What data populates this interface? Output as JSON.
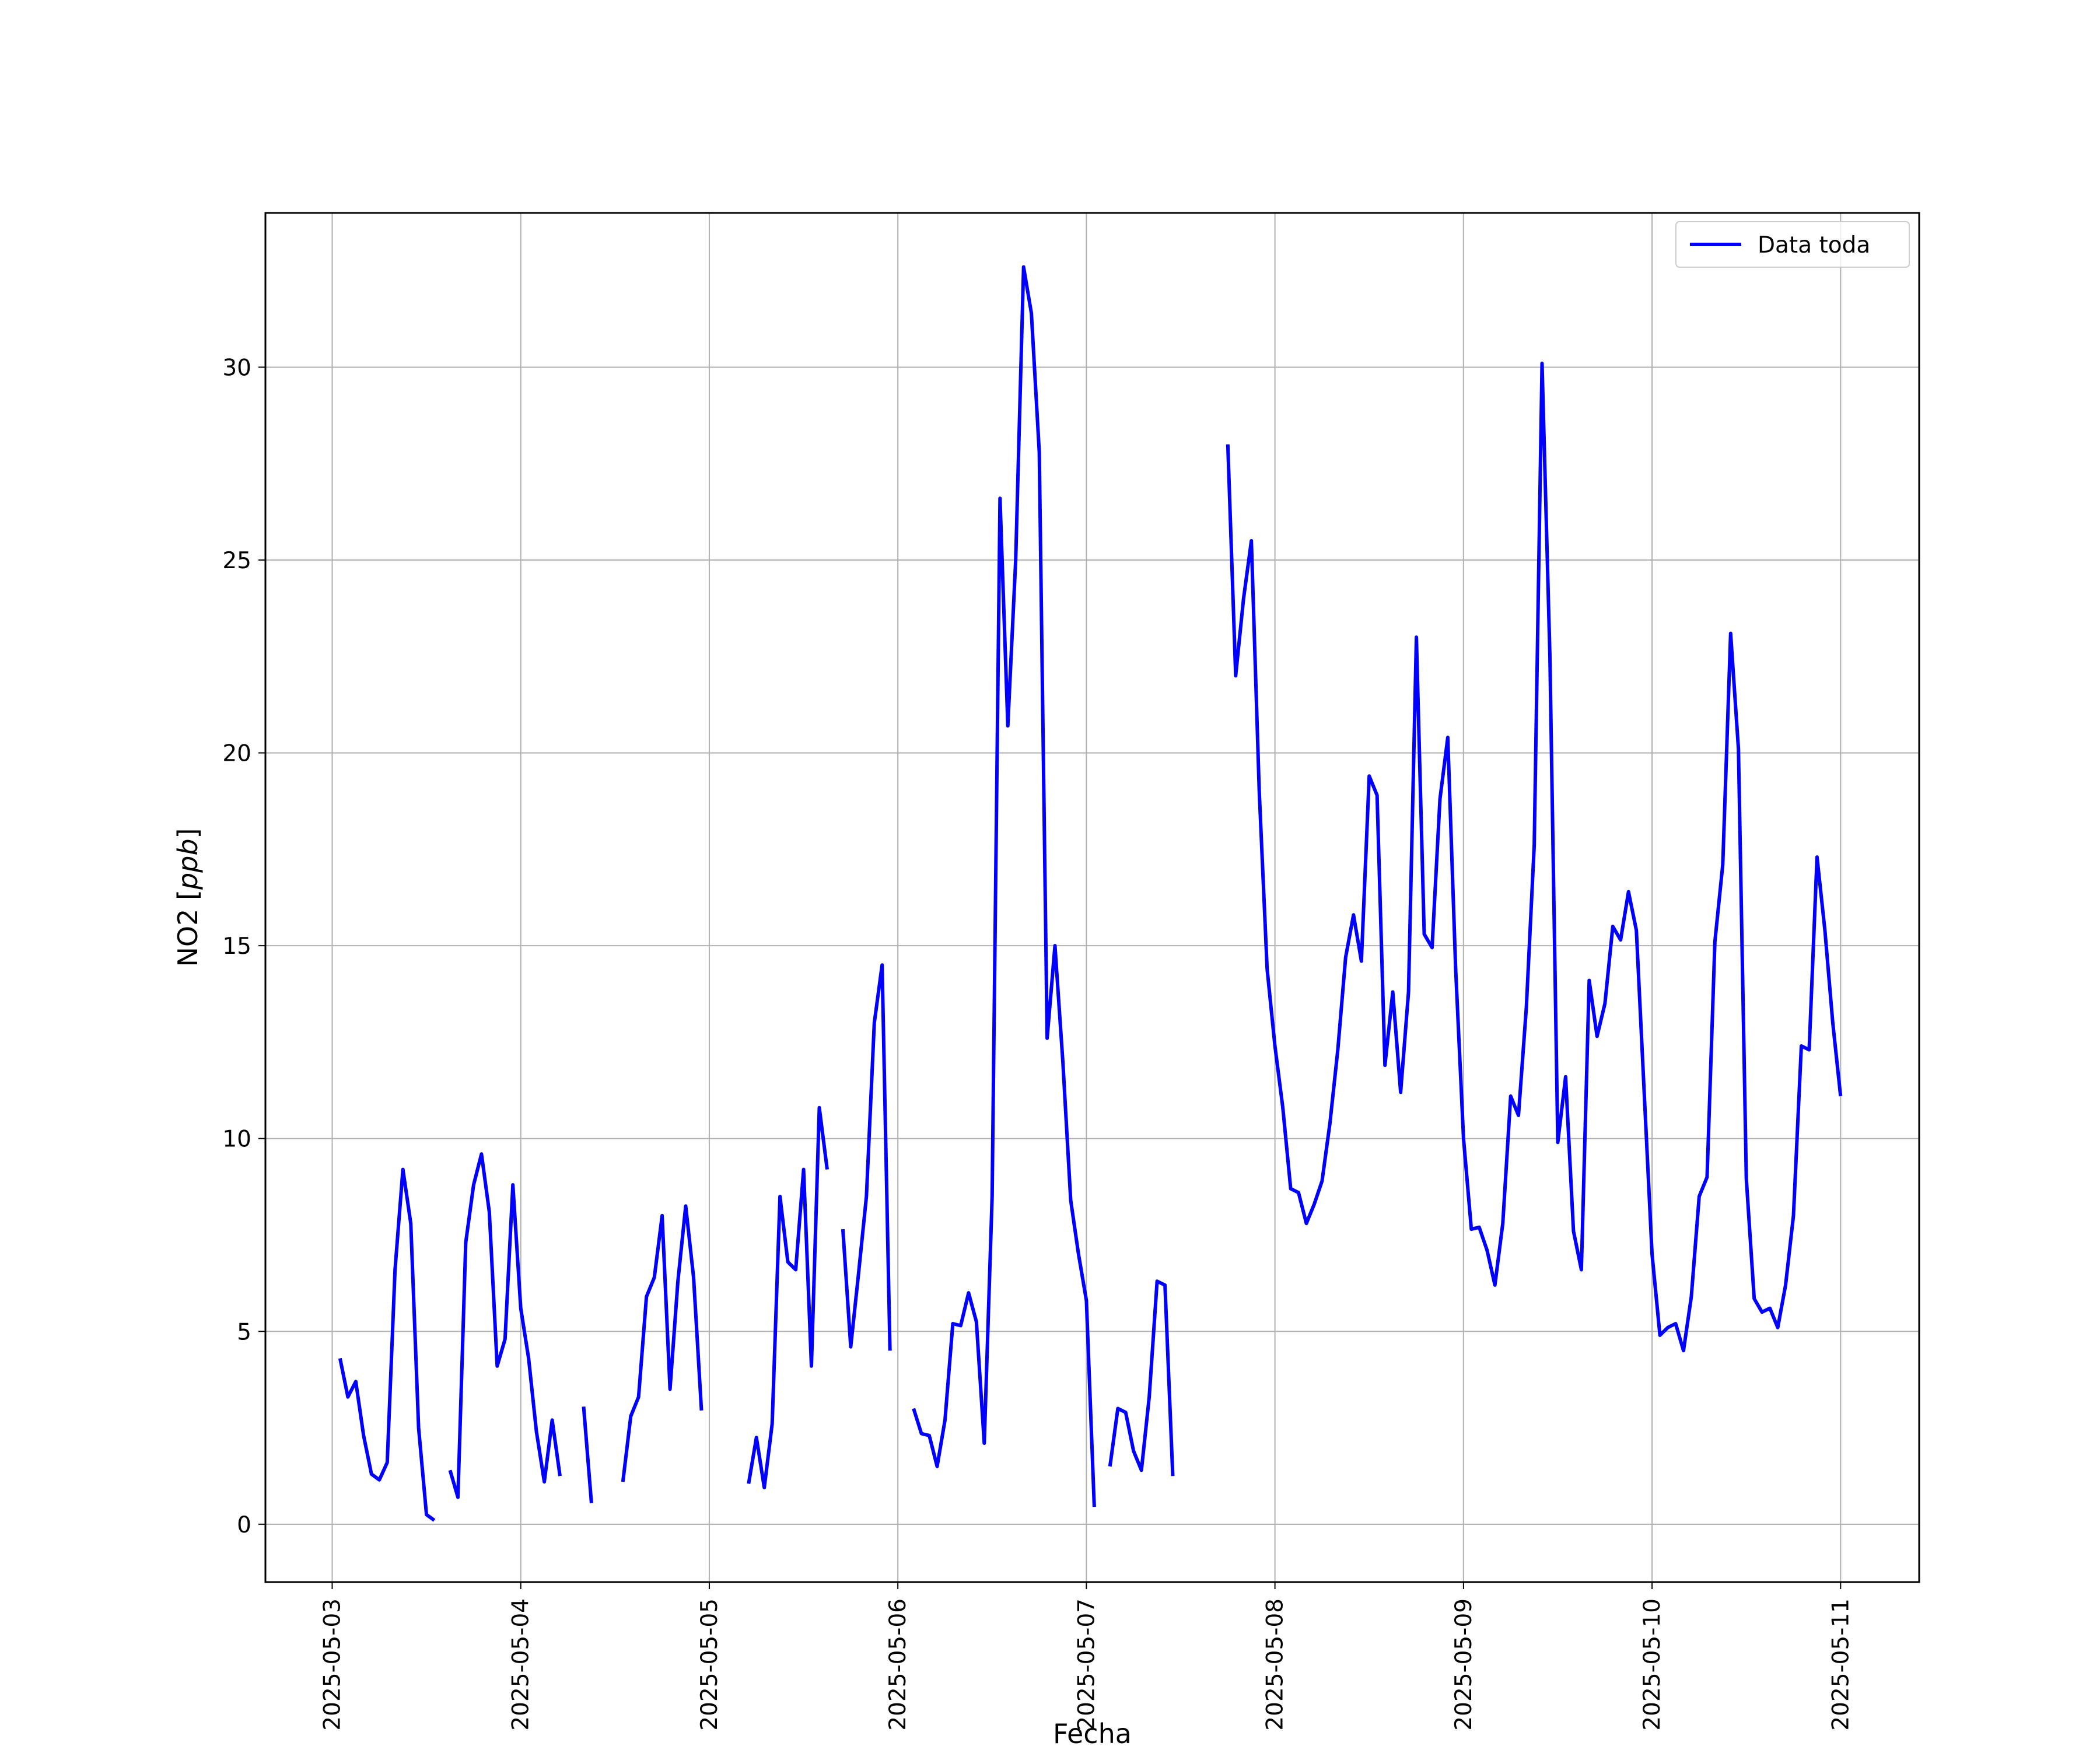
{
  "chart_data": {
    "type": "line",
    "xlabel": "Fecha",
    "ylabel": "NO2 [ppb]",
    "ylabel_main": "NO2",
    "ylabel_unit": "ppb",
    "xlim": [
      "2025-05-02T15:30",
      "2025-05-11T10:00"
    ],
    "ylim": [
      -1.5,
      34
    ],
    "x_ticks": [
      "2025-05-03",
      "2025-05-04",
      "2025-05-05",
      "2025-05-06",
      "2025-05-07",
      "2025-05-08",
      "2025-05-09",
      "2025-05-10",
      "2025-05-11"
    ],
    "y_ticks": [
      0,
      5,
      10,
      15,
      20,
      25,
      30
    ],
    "grid": true,
    "legend_position": "top-right",
    "series": [
      {
        "name": "Data toda",
        "color": "#0000ff",
        "segments": [
          {
            "start": "2025-05-03T01:00",
            "values": [
              4.3,
              3.3,
              3.7,
              2.3,
              1.3,
              1.15,
              1.6,
              6.6,
              9.2,
              7.8,
              2.5,
              0.25,
              0.1
            ]
          },
          {
            "start": "2025-05-03T15:00",
            "values": [
              1.4,
              0.7,
              7.3,
              8.8,
              9.6,
              8.1,
              4.1,
              4.8,
              8.8,
              5.6,
              4.3,
              2.4,
              1.1,
              2.7,
              1.25
            ]
          },
          {
            "start": "2025-05-04T08:00",
            "values": [
              3.05,
              0.55
            ]
          },
          {
            "start": "2025-05-04T13:00",
            "values": [
              1.1,
              2.8,
              3.3,
              5.9,
              6.4,
              8.0,
              3.5,
              6.3,
              8.25,
              6.4,
              2.95
            ]
          },
          {
            "start": "2025-05-05T05:00",
            "values": [
              1.05,
              2.25,
              0.95,
              2.6,
              8.5,
              6.8,
              6.6,
              9.2,
              4.1,
              10.8,
              9.2
            ]
          },
          {
            "start": "2025-05-05T17:00",
            "values": [
              7.65,
              4.6,
              6.5,
              8.5,
              13.0,
              14.5,
              4.5
            ]
          },
          {
            "start": "2025-05-06T02:00",
            "values": [
              3.0,
              2.35,
              2.3,
              1.5,
              2.7,
              5.2,
              5.15,
              6.0,
              5.25,
              2.1,
              8.5,
              26.6,
              20.7,
              25.0,
              32.6,
              31.4,
              27.8,
              12.6,
              15.0,
              12.0,
              8.4,
              7.0,
              5.8,
              0.45
            ]
          },
          {
            "start": "2025-05-07T03:00",
            "values": [
              1.5,
              3.0,
              2.9,
              1.9,
              1.4,
              3.3,
              6.3,
              6.2,
              1.25
            ]
          },
          {
            "start": "2025-05-07T18:00",
            "values": [
              28.0,
              22.0,
              24.0,
              25.5,
              19.0,
              14.4,
              12.4,
              10.8,
              8.7,
              8.6,
              7.8,
              8.3,
              8.9,
              10.4,
              12.3,
              14.7,
              15.8,
              14.6,
              19.4,
              18.9,
              11.9,
              13.8,
              11.2,
              13.8,
              23.0,
              15.3,
              14.95,
              18.8,
              20.4,
              14.4,
              10.0,
              7.65,
              7.7,
              7.1,
              6.2,
              7.8,
              11.1,
              10.6,
              13.4,
              17.6,
              30.1,
              22.5,
              9.9,
              11.6,
              7.6,
              6.6,
              14.1,
              12.65,
              13.5,
              15.5,
              15.15,
              16.4,
              15.4,
              11.2,
              7.0,
              4.9,
              5.1,
              5.2,
              4.5,
              5.9,
              8.5,
              9.0,
              15.1,
              17.1,
              23.1,
              20.1,
              8.95,
              5.85,
              5.5,
              5.6,
              5.1,
              6.2,
              8.0,
              12.4,
              12.3,
              17.3,
              15.4,
              13.0,
              11.1
            ]
          }
        ]
      }
    ]
  }
}
